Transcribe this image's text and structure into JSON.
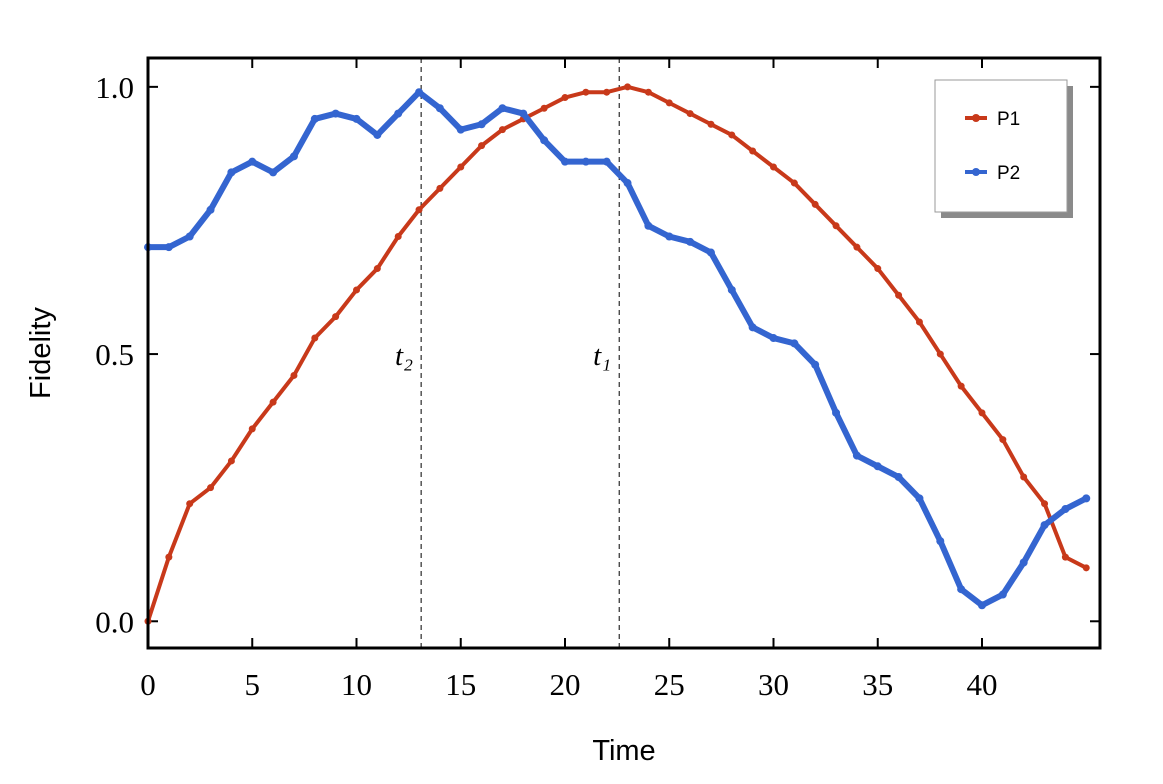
{
  "chart_data": {
    "type": "line",
    "x_label": "Time",
    "y_label": "Fidelity",
    "x": [
      0,
      1,
      2,
      3,
      4,
      5,
      6,
      7,
      8,
      9,
      10,
      11,
      12,
      13,
      14,
      15,
      16,
      17,
      18,
      19,
      20,
      21,
      22,
      23,
      24,
      25,
      26,
      27,
      28,
      29,
      30,
      31,
      32,
      33,
      34,
      35,
      36,
      37,
      38,
      39,
      40,
      41,
      42,
      43,
      44,
      45
    ],
    "series": [
      {
        "name": "P1",
        "color": "#c8391a",
        "values": [
          0.0,
          0.12,
          0.22,
          0.25,
          0.3,
          0.36,
          0.41,
          0.46,
          0.53,
          0.57,
          0.62,
          0.66,
          0.72,
          0.77,
          0.81,
          0.85,
          0.89,
          0.92,
          0.94,
          0.96,
          0.98,
          0.99,
          0.99,
          1.0,
          0.99,
          0.97,
          0.95,
          0.93,
          0.91,
          0.88,
          0.85,
          0.82,
          0.78,
          0.74,
          0.7,
          0.66,
          0.61,
          0.56,
          0.5,
          0.44,
          0.39,
          0.34,
          0.27,
          0.22,
          0.12,
          0.1
        ]
      },
      {
        "name": "P2",
        "color": "#3465d0",
        "values": [
          0.7,
          0.7,
          0.72,
          0.77,
          0.84,
          0.86,
          0.84,
          0.87,
          0.94,
          0.95,
          0.94,
          0.91,
          0.95,
          0.99,
          0.96,
          0.92,
          0.93,
          0.96,
          0.95,
          0.9,
          0.86,
          0.86,
          0.86,
          0.82,
          0.74,
          0.72,
          0.71,
          0.69,
          0.62,
          0.55,
          0.53,
          0.52,
          0.48,
          0.39,
          0.31,
          0.29,
          0.27,
          0.23,
          0.15,
          0.06,
          0.03,
          0.05,
          0.11,
          0.18,
          0.21,
          0.23
        ]
      }
    ],
    "xlim": [
      0,
      45.66
    ],
    "ylim": [
      -0.05,
      1.054
    ],
    "xticks": [
      0,
      5,
      10,
      15,
      20,
      25,
      30,
      35,
      40
    ],
    "yticks": [
      {
        "value": 0,
        "label": "0.0"
      },
      {
        "value": 0.5,
        "label": "0.5"
      },
      {
        "value": 1,
        "label": "1.0"
      }
    ],
    "vlines": [
      {
        "x": 13.1,
        "label": "t₂"
      },
      {
        "x": 22.6,
        "label": "t₁"
      }
    ],
    "legend": "top-right"
  }
}
